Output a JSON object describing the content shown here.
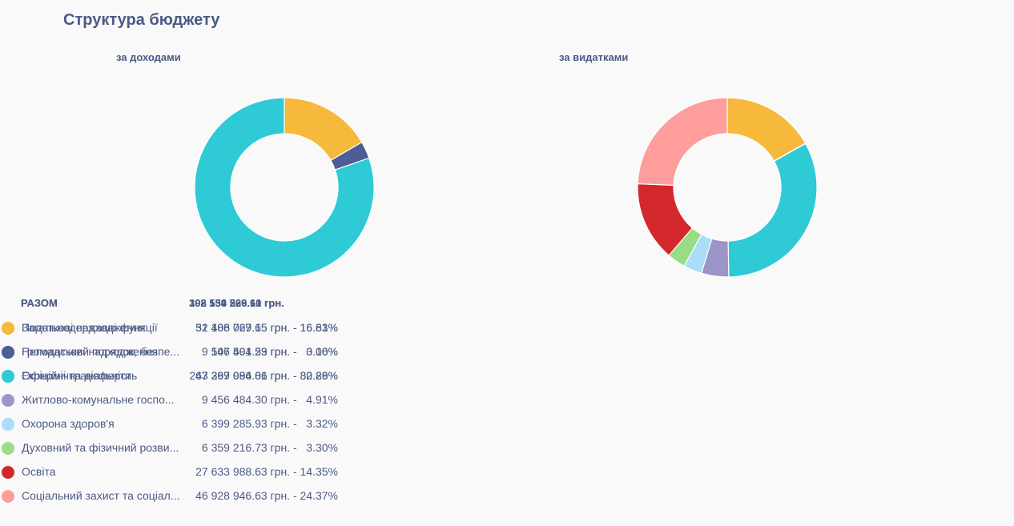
{
  "page": {
    "title": "Структура бюджету"
  },
  "chart_data": [
    {
      "type": "pie",
      "subtitle": "за доходами",
      "total_label": "РАЗОМ",
      "total_value": "308 134 526.10 грн.",
      "slices": [
        {
          "label": "Податкові надходження",
          "value": 51188029.65,
          "percent": 16.61,
          "value_text": "51 188 029.65 грн. - 16.61%",
          "color": "#f6b93b"
        },
        {
          "label": "Неподаткові надходження",
          "value": 9547401.59,
          "percent": 3.1,
          "value_text": "9 547 401.59 грн. -   3.10%",
          "color": "#4d5e96"
        },
        {
          "label": "Офіційні трансферти",
          "value": 247399094.86,
          "percent": 80.29,
          "value_text": "247 399 094.86 грн. - 80.29%",
          "color": "#2ecad6"
        }
      ]
    },
    {
      "type": "pie",
      "subtitle": "за видатками",
      "total_label": "РАЗОМ",
      "total_value": "192 559 269.61 грн.",
      "slices": [
        {
          "label": "Загальнодержавні функції",
          "value": 32406767.15,
          "percent": 16.83,
          "value_text": "32 406 767.15 грн. - 16.83%",
          "color": "#f6b93b"
        },
        {
          "label": "Громадський порядок, безпе...",
          "value": 106594.23,
          "percent": 0.06,
          "value_text": "106 594.23 грн. -   0.06%",
          "color": "#4d5e96"
        },
        {
          "label": "Економічна діяльність",
          "value": 63267986.01,
          "percent": 32.86,
          "value_text": "63 267 986.01 грн. - 32.86%",
          "color": "#2ecad6"
        },
        {
          "label": "Житлово-комунальне госпо...",
          "value": 9456484.3,
          "percent": 4.91,
          "value_text": "9 456 484.30 грн. -   4.91%",
          "color": "#9b95c9"
        },
        {
          "label": "Охорона здоров'я",
          "value": 6399285.93,
          "percent": 3.32,
          "value_text": "6 399 285.93 грн. -   3.32%",
          "color": "#a9ddf8"
        },
        {
          "label": "Духовний та фізичний розви...",
          "value": 6359216.73,
          "percent": 3.3,
          "value_text": "6 359 216.73 грн. -   3.30%",
          "color": "#98dc83"
        },
        {
          "label": "Освіта",
          "value": 27633988.63,
          "percent": 14.35,
          "value_text": "27 633 988.63 грн. - 14.35%",
          "color": "#d3282b"
        },
        {
          "label": "Соціальний захист та соціал...",
          "value": 46928946.63,
          "percent": 24.37,
          "value_text": "46 928 946.63 грн. - 24.37%",
          "color": "#ff9c9c"
        }
      ]
    }
  ]
}
